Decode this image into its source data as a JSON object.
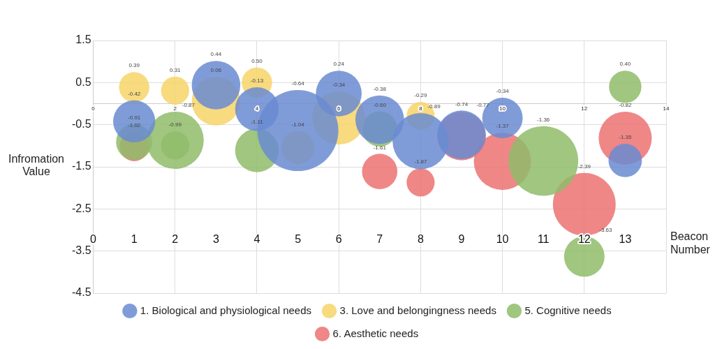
{
  "chart_data": {
    "type": "bubble",
    "ylabel": "Infromation Value",
    "x2label": "Beacon Number",
    "xlim": [
      0,
      14
    ],
    "xticks": [
      0,
      2,
      4,
      6,
      8,
      10,
      12,
      14
    ],
    "x2lim": [
      0,
      14
    ],
    "x2ticks": [
      0,
      1,
      2,
      3,
      4,
      5,
      6,
      7,
      8,
      9,
      10,
      11,
      12,
      13
    ],
    "ylim": [
      -4.5,
      1.5
    ],
    "yticks": [
      -4.5,
      -3.5,
      -2.5,
      -1.5,
      -0.5,
      0.5,
      1.5
    ],
    "grid": true,
    "legend": "bottom",
    "marker": "circle",
    "series": [
      {
        "name": "1. Biological and physiological needs",
        "color": "#6a8bd1",
        "x": [
          1,
          3,
          4,
          5,
          6,
          7,
          8,
          9,
          10,
          13
        ],
        "values": [
          -0.42,
          0.44,
          -0.13,
          -0.64,
          0.24,
          -0.38,
          -0.89,
          -0.74,
          -0.34,
          -1.35
        ],
        "sizes": [
          0.27,
          0.36,
          0.29,
          1,
          0.32,
          0.36,
          0.48,
          0.36,
          0.25,
          0.17
        ],
        "value_labels": [
          "-0.42",
          "0.44",
          "-0.13",
          "-0.64",
          "0.24",
          "-0.38",
          "-0.89",
          "-0.74",
          "-0.34",
          "-1.35"
        ]
      },
      {
        "name": "3. Love and belongingness needs",
        "color": "#f7d468",
        "x": [
          1,
          2,
          3,
          4,
          5,
          6,
          8
        ],
        "values": [
          0.39,
          0.31,
          0.06,
          0.5,
          -1.04,
          -0.34,
          -0.29
        ],
        "sizes": [
          0.14,
          0.12,
          0.36,
          0.14,
          0.17,
          0.43,
          0.12
        ],
        "value_labels": [
          "0.39",
          "0.31",
          "0.06",
          "0.50",
          "-1.04",
          "-0.34",
          "-0.29"
        ]
      },
      {
        "name": "5. Cognitive needs",
        "color": "#8fbc6a",
        "x": [
          1,
          2,
          2,
          4,
          7,
          11,
          12,
          13
        ],
        "values": [
          -0.91,
          -0.87,
          -0.99,
          -1.11,
          -0.6,
          -1.36,
          -3.63,
          0.4
        ],
        "sizes": [
          0.2,
          0.5,
          0.12,
          0.29,
          0.19,
          0.74,
          0.25,
          0.16
        ],
        "value_labels": [
          "-0.91",
          "-0.87",
          "-0.99",
          "-1.11",
          "-0.60",
          "-1.36",
          "-3.63",
          "0.40"
        ]
      },
      {
        "name": "6. Aesthetic needs",
        "color": "#ec7272",
        "x": [
          1,
          7,
          8,
          9,
          10,
          12,
          13
        ],
        "values": [
          -1.02,
          -1.61,
          -1.87,
          -0.77,
          -1.37,
          -2.39,
          -0.82
        ],
        "sizes": [
          0.13,
          0.19,
          0.12,
          0.36,
          0.5,
          0.6,
          0.43
        ],
        "value_labels": [
          "-1.02",
          "-1.61",
          "-1.87",
          "-0.77",
          "-1.37",
          "-2.39",
          "-0.82"
        ]
      }
    ]
  }
}
